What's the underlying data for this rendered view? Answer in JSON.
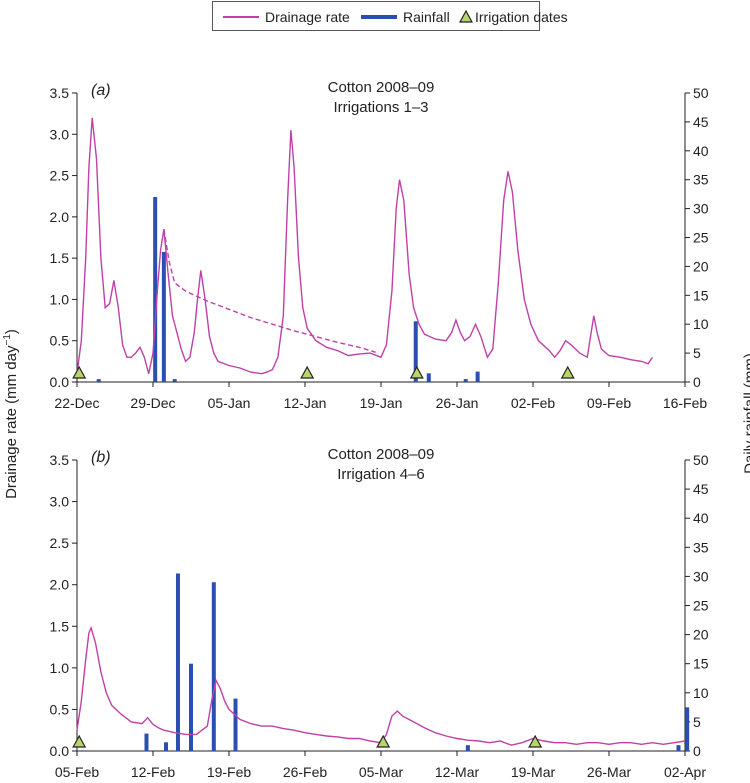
{
  "legend": {
    "drainage": "Drainage rate",
    "rainfall": "Rainfall",
    "irrigation": "Irrigation dates"
  },
  "axis_titles": {
    "left": "Drainage rate (mm day",
    "left_sup": "−1",
    "left_close": ")",
    "right": "Daily rainfall (mm)"
  },
  "colors": {
    "drainage": "#c040a8",
    "rainfall": "#2b4fb0",
    "irrigation_fill": "#b8d46a",
    "axis": "#222222"
  },
  "chart_data": [
    {
      "type": "line",
      "panel_label": "a",
      "title": "Cotton 2008–09",
      "subtitle": "Irrigations 1–3",
      "ylim_left": [
        0,
        3.5
      ],
      "ylim_right": [
        0,
        50
      ],
      "left_ticks": [
        "0.0",
        "0.5",
        "1.0",
        "1.5",
        "2.0",
        "2.5",
        "3.0",
        "3.5"
      ],
      "right_ticks": [
        "0",
        "5",
        "10",
        "15",
        "20",
        "25",
        "30",
        "35",
        "40",
        "45",
        "50"
      ],
      "x_ticks": [
        "22-Dec",
        "29-Dec",
        "05-Jan",
        "12-Jan",
        "19-Jan",
        "26-Jan",
        "02-Feb",
        "09-Feb",
        "16-Feb"
      ],
      "x_range_days": [
        0,
        56
      ],
      "drainage": [
        [
          0,
          0.1
        ],
        [
          0.4,
          0.5
        ],
        [
          0.8,
          1.5
        ],
        [
          1.1,
          2.6
        ],
        [
          1.4,
          3.2
        ],
        [
          1.8,
          2.7
        ],
        [
          2.2,
          1.5
        ],
        [
          2.6,
          0.9
        ],
        [
          3.0,
          0.95
        ],
        [
          3.4,
          1.23
        ],
        [
          3.8,
          0.9
        ],
        [
          4.2,
          0.45
        ],
        [
          4.6,
          0.3
        ],
        [
          5.0,
          0.3
        ],
        [
          5.4,
          0.35
        ],
        [
          5.8,
          0.42
        ],
        [
          6.2,
          0.3
        ],
        [
          6.6,
          0.1
        ],
        [
          7.0,
          0.35
        ],
        [
          7.4,
          1.1
        ],
        [
          7.7,
          1.6
        ],
        [
          8.0,
          1.85
        ],
        [
          8.4,
          1.3
        ],
        [
          8.8,
          0.8
        ],
        [
          9.2,
          0.6
        ],
        [
          9.6,
          0.4
        ],
        [
          10.0,
          0.25
        ],
        [
          10.4,
          0.3
        ],
        [
          10.8,
          0.6
        ],
        [
          11.1,
          1.0
        ],
        [
          11.4,
          1.35
        ],
        [
          11.8,
          1.0
        ],
        [
          12.2,
          0.55
        ],
        [
          12.6,
          0.35
        ],
        [
          13,
          0.25
        ],
        [
          14,
          0.2
        ],
        [
          15,
          0.17
        ],
        [
          16,
          0.12
        ],
        [
          17,
          0.1
        ],
        [
          17.5,
          0.12
        ],
        [
          18,
          0.15
        ],
        [
          18.5,
          0.3
        ],
        [
          19,
          0.8
        ],
        [
          19.4,
          2.2
        ],
        [
          19.7,
          3.05
        ],
        [
          20.0,
          2.6
        ],
        [
          20.4,
          1.5
        ],
        [
          20.8,
          0.9
        ],
        [
          21.2,
          0.65
        ],
        [
          22,
          0.5
        ],
        [
          23,
          0.42
        ],
        [
          24,
          0.38
        ],
        [
          25,
          0.32
        ],
        [
          26,
          0.34
        ],
        [
          27,
          0.35
        ],
        [
          28,
          0.3
        ],
        [
          28.5,
          0.45
        ],
        [
          29,
          1.1
        ],
        [
          29.4,
          2.1
        ],
        [
          29.7,
          2.45
        ],
        [
          30.1,
          2.2
        ],
        [
          30.6,
          1.3
        ],
        [
          31,
          0.9
        ],
        [
          31.5,
          0.7
        ],
        [
          32,
          0.58
        ],
        [
          33,
          0.52
        ],
        [
          34,
          0.5
        ],
        [
          34.5,
          0.6
        ],
        [
          34.9,
          0.75
        ],
        [
          35.3,
          0.6
        ],
        [
          35.7,
          0.5
        ],
        [
          36.2,
          0.55
        ],
        [
          36.7,
          0.7
        ],
        [
          37.2,
          0.55
        ],
        [
          37.8,
          0.3
        ],
        [
          38.3,
          0.4
        ],
        [
          38.8,
          1.2
        ],
        [
          39.3,
          2.2
        ],
        [
          39.7,
          2.55
        ],
        [
          40.1,
          2.3
        ],
        [
          40.6,
          1.6
        ],
        [
          41.2,
          1.0
        ],
        [
          41.8,
          0.7
        ],
        [
          42.5,
          0.5
        ],
        [
          43.5,
          0.38
        ],
        [
          44,
          0.3
        ],
        [
          44.5,
          0.38
        ],
        [
          45,
          0.5
        ],
        [
          45.5,
          0.45
        ],
        [
          46.3,
          0.35
        ],
        [
          47,
          0.3
        ],
        [
          47.3,
          0.55
        ],
        [
          47.6,
          0.8
        ],
        [
          47.9,
          0.6
        ],
        [
          48.3,
          0.4
        ],
        [
          49,
          0.32
        ],
        [
          50,
          0.3
        ],
        [
          51,
          0.27
        ],
        [
          52,
          0.25
        ],
        [
          52.6,
          0.22
        ],
        [
          53,
          0.3
        ]
      ],
      "drainage_dashed": [
        [
          8.0,
          1.85
        ],
        [
          8.5,
          1.45
        ],
        [
          9,
          1.2
        ],
        [
          10,
          1.1
        ],
        [
          12,
          0.98
        ],
        [
          14,
          0.88
        ],
        [
          16,
          0.78
        ],
        [
          18,
          0.7
        ],
        [
          20,
          0.62
        ],
        [
          22,
          0.55
        ],
        [
          24,
          0.48
        ],
        [
          26,
          0.42
        ],
        [
          27.5,
          0.36
        ]
      ],
      "rainfall_bars": [
        [
          2.0,
          0.5
        ],
        [
          7.2,
          32
        ],
        [
          8.0,
          22.5
        ],
        [
          9.0,
          0.5
        ],
        [
          31.2,
          10.5
        ],
        [
          32.4,
          1.5
        ],
        [
          35.8,
          0.5
        ],
        [
          36.9,
          1.8
        ]
      ],
      "irrigation_days": [
        0.2,
        21.2,
        31.3,
        45.2
      ]
    },
    {
      "type": "line",
      "panel_label": "b",
      "title": "Cotton 2008–09",
      "subtitle": "Irrigation 4–6",
      "ylim_left": [
        0,
        3.5
      ],
      "ylim_right": [
        0,
        50
      ],
      "left_ticks": [
        "0.0",
        "0.5",
        "1.0",
        "1.5",
        "2.0",
        "2.5",
        "3.0",
        "3.5"
      ],
      "right_ticks": [
        "0",
        "5",
        "10",
        "15",
        "20",
        "25",
        "30",
        "35",
        "40",
        "45",
        "50"
      ],
      "x_ticks": [
        "05-Feb",
        "12-Feb",
        "19-Feb",
        "26-Feb",
        "05-Mar",
        "12-Mar",
        "19-Mar",
        "26-Mar",
        "02-Apr"
      ],
      "x_range_days": [
        0,
        56
      ],
      "drainage": [
        [
          0,
          0.25
        ],
        [
          0.4,
          0.6
        ],
        [
          0.8,
          1.1
        ],
        [
          1.1,
          1.42
        ],
        [
          1.3,
          1.48
        ],
        [
          1.7,
          1.3
        ],
        [
          2.2,
          0.95
        ],
        [
          2.7,
          0.7
        ],
        [
          3.2,
          0.55
        ],
        [
          4,
          0.45
        ],
        [
          5,
          0.35
        ],
        [
          6,
          0.33
        ],
        [
          6.5,
          0.4
        ],
        [
          7,
          0.32
        ],
        [
          7.5,
          0.28
        ],
        [
          8,
          0.25
        ],
        [
          9,
          0.22
        ],
        [
          10,
          0.2
        ],
        [
          11,
          0.2
        ],
        [
          11.5,
          0.25
        ],
        [
          12,
          0.3
        ],
        [
          12.4,
          0.6
        ],
        [
          12.8,
          0.85
        ],
        [
          13.2,
          0.75
        ],
        [
          13.6,
          0.6
        ],
        [
          14,
          0.5
        ],
        [
          15,
          0.38
        ],
        [
          16,
          0.33
        ],
        [
          17,
          0.3
        ],
        [
          18,
          0.3
        ],
        [
          19,
          0.27
        ],
        [
          20,
          0.25
        ],
        [
          21,
          0.22
        ],
        [
          22,
          0.2
        ],
        [
          23,
          0.18
        ],
        [
          24,
          0.17
        ],
        [
          25,
          0.15
        ],
        [
          26,
          0.15
        ],
        [
          27,
          0.12
        ],
        [
          28,
          0.1
        ],
        [
          28.5,
          0.2
        ],
        [
          29,
          0.42
        ],
        [
          29.5,
          0.48
        ],
        [
          30,
          0.42
        ],
        [
          31,
          0.35
        ],
        [
          32,
          0.28
        ],
        [
          33,
          0.22
        ],
        [
          34,
          0.18
        ],
        [
          35,
          0.15
        ],
        [
          36,
          0.13
        ],
        [
          37,
          0.12
        ],
        [
          38,
          0.1
        ],
        [
          39,
          0.12
        ],
        [
          40,
          0.07
        ],
        [
          41,
          0.1
        ],
        [
          42,
          0.15
        ],
        [
          43,
          0.12
        ],
        [
          44,
          0.1
        ],
        [
          45,
          0.1
        ],
        [
          46,
          0.08
        ],
        [
          47,
          0.1
        ],
        [
          48,
          0.1
        ],
        [
          49,
          0.08
        ],
        [
          50,
          0.1
        ],
        [
          51,
          0.1
        ],
        [
          52,
          0.08
        ],
        [
          53,
          0.1
        ],
        [
          54,
          0.08
        ],
        [
          55,
          0.1
        ],
        [
          56,
          0.12
        ]
      ],
      "drainage_dashed": [],
      "rainfall_bars": [
        [
          6.4,
          3
        ],
        [
          8.2,
          1.5
        ],
        [
          9.3,
          30.5
        ],
        [
          10.5,
          15
        ],
        [
          12.6,
          29
        ],
        [
          14.6,
          9
        ],
        [
          36.0,
          1
        ],
        [
          55.4,
          1
        ],
        [
          56.2,
          7.5
        ]
      ],
      "irrigation_days": [
        0.2,
        28.2,
        42.2
      ]
    }
  ]
}
